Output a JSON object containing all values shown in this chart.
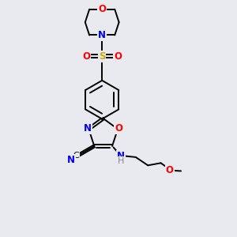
{
  "background_color": "#e8eaf0",
  "bond_color": "#000000",
  "atom_colors": {
    "N": "#0000ff",
    "O": "#ff0000",
    "S": "#ccaa00",
    "C": "#000000",
    "H": "#888888"
  },
  "figsize": [
    3.0,
    3.0
  ],
  "dpi": 100
}
